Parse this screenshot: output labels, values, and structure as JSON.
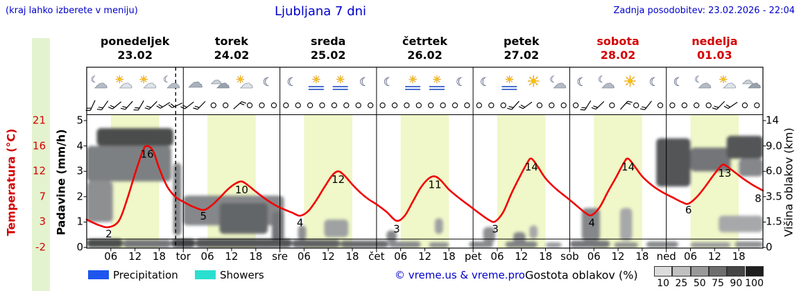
{
  "header": {
    "menu_note": "(kraj lahko izberete v meniju)",
    "title": "Ljubljana 7 dni",
    "last_update": "Zadnja posodobitev: 23.02.2026 - 22:04"
  },
  "days": [
    {
      "name": "ponedeljek",
      "date": "23.02",
      "abbr": "",
      "color": "#000000"
    },
    {
      "name": "torek",
      "date": "24.02",
      "abbr": "tor",
      "color": "#000000"
    },
    {
      "name": "sreda",
      "date": "25.02",
      "abbr": "sre",
      "color": "#000000"
    },
    {
      "name": "četrtek",
      "date": "26.02",
      "abbr": "čet",
      "color": "#000000"
    },
    {
      "name": "petek",
      "date": "27.02",
      "abbr": "pet",
      "color": "#000000"
    },
    {
      "name": "sobota",
      "date": "28.02",
      "abbr": "sob",
      "color": "#d40000"
    },
    {
      "name": "nedelja",
      "date": "01.03",
      "abbr": "ned",
      "color": "#d40000"
    }
  ],
  "axes": {
    "temp_label": "Temperatura (°C)",
    "temp_ticks": [
      "21",
      "16",
      "12",
      "7",
      "3",
      "-2"
    ],
    "precip_label": "Padavine (mm/h)",
    "precip_ticks": [
      "5",
      "4",
      "3",
      "2",
      "1",
      "0"
    ],
    "cloud_label": "Višina oblakov (km)",
    "cloud_ticks": [
      "14",
      "9.0",
      "6.0",
      "3.5",
      "1.5",
      "0"
    ],
    "hour_ticks": [
      "06",
      "12",
      "18"
    ]
  },
  "legend": {
    "precipitation": "Precipitation",
    "precip_color": "#1d55ee",
    "showers": "Showers",
    "showers_color": "#2adfd0",
    "copyright": "© vreme.us & vreme.pro",
    "cloud_density_label": "Gostota oblakov (%)",
    "cloud_density_ticks": [
      "10",
      "25",
      "50",
      "75",
      "90",
      "100"
    ],
    "cloud_density_colors": [
      "#dcdcdc",
      "#c0c0c0",
      "#999999",
      "#6e6e6e",
      "#464646",
      "#1e1e1e"
    ]
  },
  "colors": {
    "day_band": "#f0f7c8",
    "temp_curve": "#f00000",
    "text_blue": "#0000cc",
    "text_red": "#d40000",
    "left_strip": "#e4f3cf",
    "now_line": "#000000"
  },
  "chart_data": {
    "type": "line",
    "title": "Ljubljana 7 dni",
    "x_unit": "hours from 23.02 00:00 (7 days, 0-168)",
    "now_hour": 22.1,
    "daylight_band_hours": [
      6,
      18
    ],
    "temp_axis_ticks": [
      21,
      16,
      12,
      7,
      3,
      -2
    ],
    "precip_axis_ticks": [
      5,
      4,
      3,
      2,
      1,
      0
    ],
    "cloud_axis_ticks_km": [
      14,
      9,
      6,
      3.5,
      1.5,
      0
    ],
    "temperature": [
      [
        0,
        3.4
      ],
      [
        3,
        2.4
      ],
      [
        5.5,
        2
      ],
      [
        8,
        3.2
      ],
      [
        10,
        6.5
      ],
      [
        12,
        11.5
      ],
      [
        14,
        15.3
      ],
      [
        15,
        16
      ],
      [
        16.5,
        15.2
      ],
      [
        18,
        12.5
      ],
      [
        20,
        9
      ],
      [
        22,
        7
      ],
      [
        24,
        6.2
      ],
      [
        26.5,
        5.4
      ],
      [
        29,
        4.9
      ],
      [
        31,
        5.6
      ],
      [
        33,
        6.8
      ],
      [
        35,
        8.4
      ],
      [
        37,
        9.6
      ],
      [
        38.5,
        10
      ],
      [
        40,
        9.3
      ],
      [
        42,
        8
      ],
      [
        44.5,
        6.6
      ],
      [
        47,
        5.6
      ],
      [
        49,
        5
      ],
      [
        51,
        4.5
      ],
      [
        53,
        4
      ],
      [
        55,
        4.7
      ],
      [
        57,
        6.4
      ],
      [
        59,
        8.8
      ],
      [
        61,
        11.2
      ],
      [
        62.5,
        12
      ],
      [
        64,
        11.2
      ],
      [
        66,
        9.4
      ],
      [
        68,
        7.8
      ],
      [
        70,
        6.6
      ],
      [
        72,
        5.8
      ],
      [
        74.5,
        4.6
      ],
      [
        77,
        3.2
      ],
      [
        79,
        4
      ],
      [
        81,
        6.2
      ],
      [
        83,
        8.8
      ],
      [
        85,
        10.6
      ],
      [
        86.5,
        11
      ],
      [
        88,
        10.2
      ],
      [
        90,
        8.4
      ],
      [
        92.5,
        6.8
      ],
      [
        95,
        5.6
      ],
      [
        97.5,
        4.4
      ],
      [
        100,
        3.3
      ],
      [
        101.5,
        3.1
      ],
      [
        103.5,
        4.6
      ],
      [
        105.5,
        7.6
      ],
      [
        107.5,
        10.8
      ],
      [
        109.5,
        13.4
      ],
      [
        110.5,
        14
      ],
      [
        112,
        12.8
      ],
      [
        114,
        10.6
      ],
      [
        116.5,
        8.6
      ],
      [
        119,
        7
      ],
      [
        121.5,
        5.7
      ],
      [
        124,
        4.4
      ],
      [
        125.5,
        4.1
      ],
      [
        127.5,
        5.4
      ],
      [
        129.5,
        8
      ],
      [
        131.5,
        10.8
      ],
      [
        133.5,
        13.4
      ],
      [
        134.5,
        14
      ],
      [
        136,
        12.9
      ],
      [
        138,
        11
      ],
      [
        140.5,
        9.2
      ],
      [
        143,
        7.9
      ],
      [
        145.5,
        6.9
      ],
      [
        148,
        6.1
      ],
      [
        149.5,
        5.9
      ],
      [
        151.5,
        6.9
      ],
      [
        153.5,
        8.8
      ],
      [
        155.5,
        11
      ],
      [
        157.5,
        12.8
      ],
      [
        158.5,
        13
      ],
      [
        160.5,
        12.1
      ],
      [
        163,
        10.6
      ],
      [
        165.5,
        9.3
      ],
      [
        168,
        8.2
      ]
    ],
    "temp_max_labels": [
      [
        15,
        16
      ],
      [
        38.5,
        10
      ],
      [
        62.5,
        12
      ],
      [
        86.5,
        11
      ],
      [
        110.5,
        14
      ],
      [
        134.5,
        14
      ],
      [
        158.5,
        13
      ]
    ],
    "temp_min_labels": [
      [
        5.5,
        2
      ],
      [
        29,
        5
      ],
      [
        53,
        4
      ],
      [
        77,
        3
      ],
      [
        101.5,
        3
      ],
      [
        125.5,
        4
      ],
      [
        149.5,
        6
      ],
      [
        166.8,
        8
      ]
    ],
    "cloud_layers": [
      [
        0,
        21,
        5,
        9,
        0.55
      ],
      [
        2.5,
        21.5,
        9,
        12.5,
        0.85
      ],
      [
        0,
        6.5,
        1.5,
        5,
        0.45
      ],
      [
        21.5,
        23.5,
        0.7,
        7,
        0.5
      ],
      [
        24,
        49,
        1.3,
        3.6,
        0.5
      ],
      [
        33,
        45,
        0.8,
        3,
        0.7
      ],
      [
        46,
        49,
        0.4,
        2.3,
        0.6
      ],
      [
        52.5,
        54.5,
        0.4,
        1.3,
        0.45
      ],
      [
        59,
        65,
        0.6,
        1.7,
        0.35
      ],
      [
        74.5,
        77,
        0.3,
        1,
        0.5
      ],
      [
        86.5,
        88.5,
        0.8,
        1.8,
        0.35
      ],
      [
        98.5,
        101.5,
        0.3,
        1.2,
        0.45
      ],
      [
        106,
        109,
        0.2,
        0.9,
        0.5
      ],
      [
        110,
        112,
        0.5,
        1.3,
        0.3
      ],
      [
        123,
        127.5,
        0.4,
        2.6,
        0.5
      ],
      [
        132.5,
        135.5,
        0.4,
        2.6,
        0.3
      ],
      [
        141.5,
        150,
        4.5,
        10.5,
        0.8
      ],
      [
        150,
        160,
        6,
        8.8,
        0.6
      ],
      [
        159,
        168,
        7.5,
        11,
        0.8
      ],
      [
        162,
        168,
        5.5,
        7.5,
        0.5
      ],
      [
        157,
        168,
        0.9,
        2,
        0.3
      ],
      [
        0,
        9,
        0,
        0.5,
        0.85
      ],
      [
        9,
        21,
        0,
        0.45,
        0.6
      ],
      [
        21,
        27,
        0,
        0.5,
        0.9
      ],
      [
        27,
        51,
        0,
        0.5,
        0.8
      ],
      [
        51,
        63,
        0,
        0.45,
        0.72
      ],
      [
        63,
        75,
        0,
        0.4,
        0.68
      ],
      [
        75,
        83,
        0,
        0.35,
        0.5
      ],
      [
        85,
        90,
        0,
        0.3,
        0.45
      ],
      [
        95,
        101,
        0,
        0.35,
        0.5
      ],
      [
        104,
        112,
        0,
        0.35,
        0.55
      ],
      [
        114,
        118,
        0,
        0.3,
        0.4
      ],
      [
        120,
        130,
        0,
        0.4,
        0.6
      ],
      [
        131,
        137,
        0,
        0.3,
        0.45
      ],
      [
        139,
        147,
        0,
        0.35,
        0.5
      ],
      [
        150,
        160,
        0,
        0.3,
        0.4
      ],
      [
        161,
        168,
        0,
        0.35,
        0.45
      ]
    ]
  },
  "icons": [
    [
      3,
      "moon-cloud"
    ],
    [
      9,
      "sun-cloud"
    ],
    [
      15,
      "sun-cloud"
    ],
    [
      21,
      "moon-cloud"
    ],
    [
      27,
      "cloud"
    ],
    [
      33,
      "cloud2"
    ],
    [
      39,
      "sun-cloud"
    ],
    [
      45,
      "moon"
    ],
    [
      51,
      "moon"
    ],
    [
      57,
      "sun-fog"
    ],
    [
      63,
      "sun-fog"
    ],
    [
      69,
      "moon"
    ],
    [
      75,
      "moon"
    ],
    [
      81,
      "sun-fog"
    ],
    [
      87,
      "sun-fog"
    ],
    [
      93,
      "moon"
    ],
    [
      99,
      "moon"
    ],
    [
      105,
      "sun-fog"
    ],
    [
      111,
      "sun"
    ],
    [
      117,
      "moon-cloud"
    ],
    [
      123,
      "moon"
    ],
    [
      129,
      "moon-cloud"
    ],
    [
      135,
      "sun"
    ],
    [
      141,
      "moon"
    ],
    [
      147,
      "moon"
    ],
    [
      153,
      "moon-cloud"
    ],
    [
      159,
      "sun-cloud"
    ],
    [
      165,
      "cloud2"
    ]
  ],
  "wind": [
    [
      1.5,
      "b",
      205
    ],
    [
      4.5,
      "b",
      215
    ],
    [
      7.5,
      "b",
      230
    ],
    [
      10.5,
      "b",
      222
    ],
    [
      13.5,
      "b",
      210
    ],
    [
      16.5,
      "b",
      225
    ],
    [
      19.5,
      "b",
      238
    ],
    [
      22.5,
      "b",
      245
    ],
    [
      25.5,
      "b",
      232
    ],
    [
      28.5,
      "b",
      224
    ],
    [
      31.5,
      "o",
      0
    ],
    [
      34.5,
      "o",
      0
    ],
    [
      37.5,
      "b",
      48
    ],
    [
      40.5,
      "o",
      0
    ],
    [
      43.5,
      "o",
      0
    ],
    [
      46.5,
      "o",
      0
    ],
    [
      49.5,
      "o",
      0
    ],
    [
      52.5,
      "o",
      0
    ],
    [
      55.5,
      "o",
      0
    ],
    [
      58.5,
      "o",
      0
    ],
    [
      61.5,
      "o",
      0
    ],
    [
      64.5,
      "o",
      0
    ],
    [
      67.5,
      "o",
      0
    ],
    [
      70.5,
      "o",
      0
    ],
    [
      73.5,
      "o",
      0
    ],
    [
      76.5,
      "o",
      0
    ],
    [
      79.5,
      "o",
      0
    ],
    [
      82.5,
      "o",
      0
    ],
    [
      85.5,
      "o",
      0
    ],
    [
      88.5,
      "o",
      0
    ],
    [
      91.5,
      "o",
      0
    ],
    [
      94.5,
      "o",
      0
    ],
    [
      97.5,
      "o",
      0
    ],
    [
      100.5,
      "o",
      0
    ],
    [
      103.5,
      "o",
      0
    ],
    [
      106.5,
      "b",
      222
    ],
    [
      109.5,
      "b",
      234
    ],
    [
      112.5,
      "o",
      0
    ],
    [
      115.5,
      "o",
      0
    ],
    [
      118.5,
      "o",
      0
    ],
    [
      121.5,
      "o",
      0
    ],
    [
      124.5,
      "b",
      212
    ],
    [
      127.5,
      "b",
      226
    ],
    [
      130.5,
      "o",
      0
    ],
    [
      133.5,
      "b",
      42
    ],
    [
      136.5,
      "o",
      0
    ],
    [
      139.5,
      "b",
      218
    ],
    [
      142.5,
      "o",
      0
    ],
    [
      145.5,
      "o",
      0
    ],
    [
      148.5,
      "o",
      0
    ],
    [
      151.5,
      "o",
      0
    ],
    [
      154.5,
      "o",
      0
    ],
    [
      157.5,
      "b",
      224
    ],
    [
      160.5,
      "b",
      236
    ],
    [
      163.5,
      "o",
      0
    ],
    [
      166.5,
      "o",
      0
    ]
  ]
}
